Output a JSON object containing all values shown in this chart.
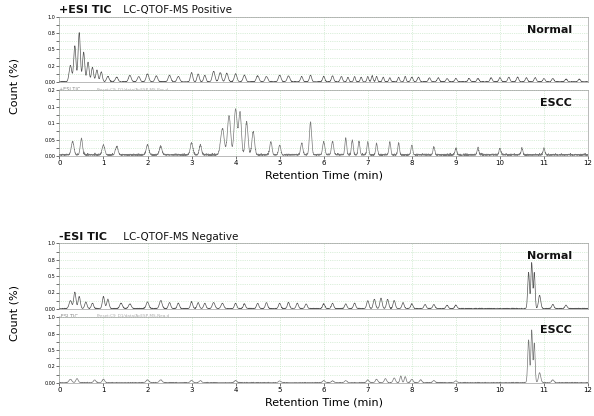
{
  "title_pos_bold": "+ESI TIC",
  "title_pos_normal": " LC-QTOF-MS Positive",
  "title_neg_bold": "-ESI TIC",
  "title_neg_normal": " LC-QTOF-MS Negative",
  "xlabel": "Retention Time (min)",
  "ylabel": "Count (%)",
  "xmin": 0,
  "xmax": 12,
  "normal_label": "Normal",
  "escc_label": "ESCC",
  "bg_color": "#ffffff",
  "grid_color": "#b8e0b8",
  "line_color_normal": "#555555",
  "line_color_escc": "#777777"
}
